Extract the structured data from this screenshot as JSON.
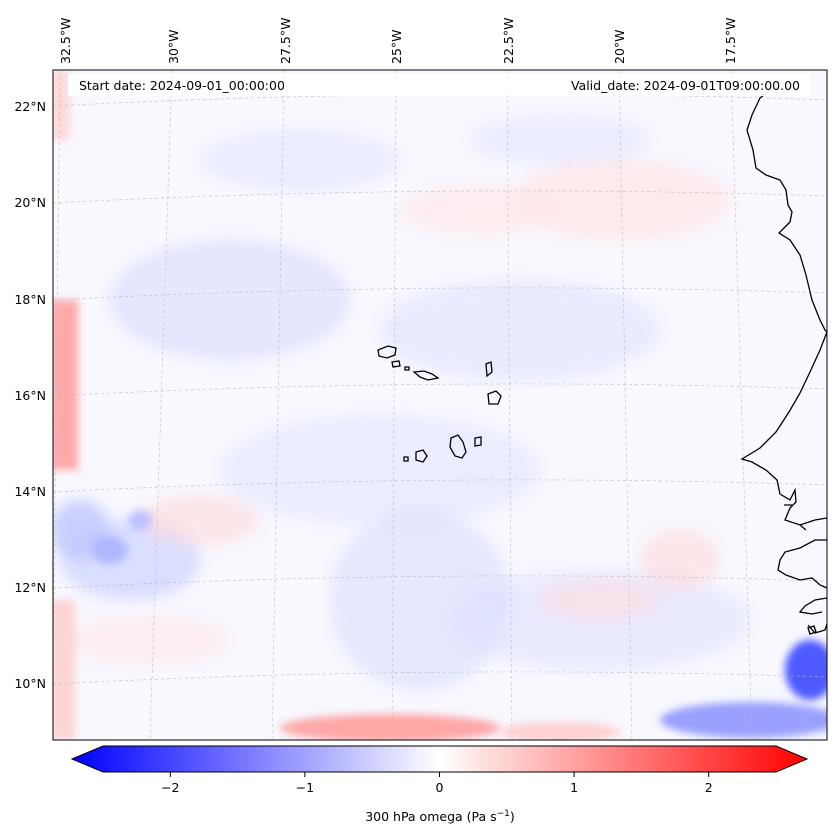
{
  "header": {
    "start_date": "Start date: 2024-09-01_00:00:00",
    "valid_date": "Valid_date: 2024-09-01T09:00:00.00"
  },
  "longitude_labels": [
    "32.5°W",
    "30°W",
    "27.5°W",
    "25°W",
    "22.5°W",
    "20°W",
    "17.5°W"
  ],
  "latitude_labels": [
    "22°N",
    "20°N",
    "18°N",
    "16°N",
    "14°N",
    "12°N",
    "10°N"
  ],
  "colorbar": {
    "ticks": [
      "−2",
      "−1",
      "0",
      "1",
      "2"
    ],
    "tick_values": [
      -2,
      -1,
      0,
      1,
      2
    ],
    "range": [
      -2.5,
      2.5
    ],
    "label_prefix": "300 hPa omega (Pa s",
    "label_exp": "−1",
    "label_suffix": ")",
    "colors": {
      "negative": "#0000ff",
      "zero": "#ffffff",
      "positive": "#ff0000"
    }
  },
  "map": {
    "field": "300 hPa omega",
    "coastline_color": "#000000",
    "gridline_color": "#bbbbbb"
  }
}
